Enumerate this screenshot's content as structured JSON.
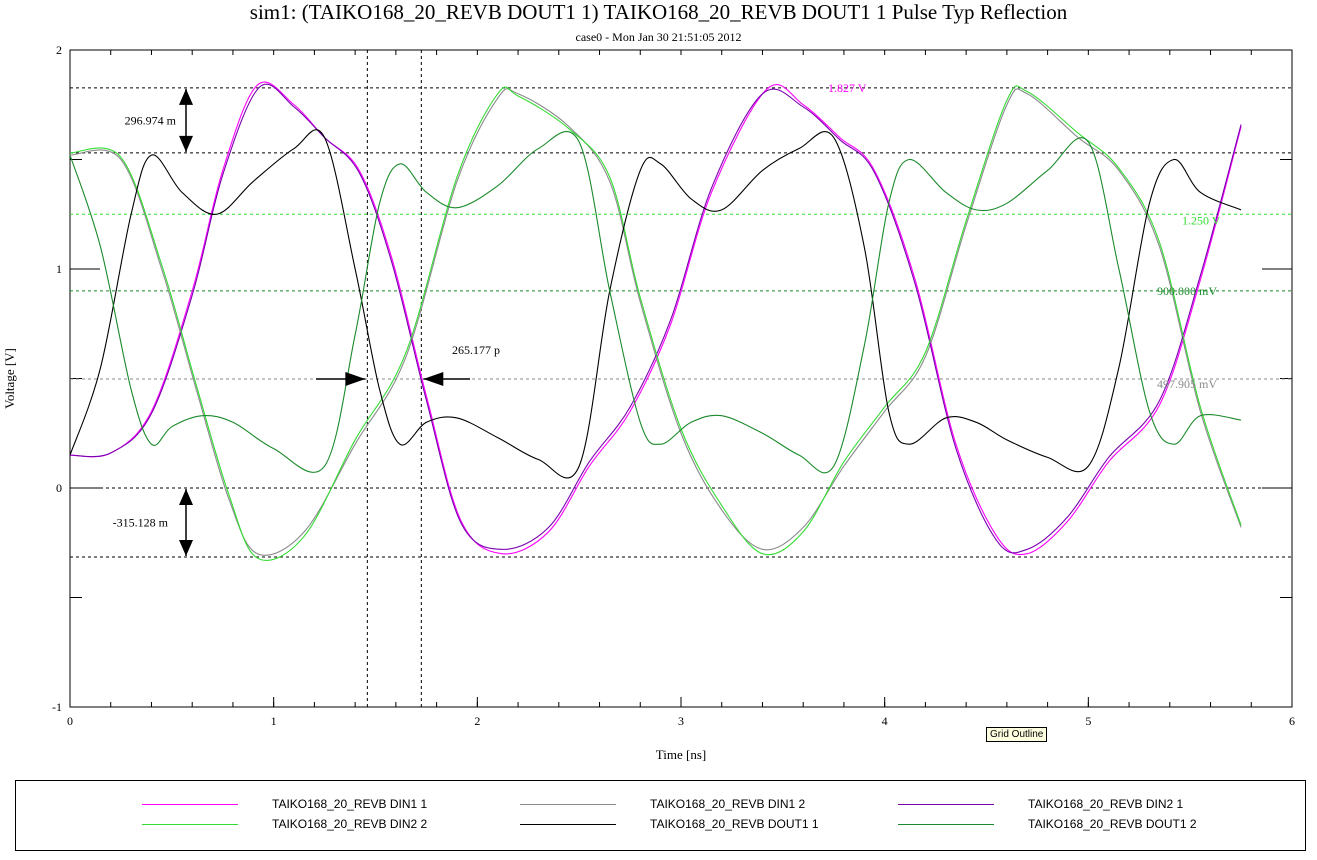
{
  "title": "sim1: (TAIKO168_20_REVB DOUT1 1) TAIKO168_20_REVB DOUT1 1 Pulse Typ Reflection",
  "subtitle": "case0 - Mon Jan 30 21:51:05 2012",
  "tooltip": "Grid Outline",
  "colors": {
    "magenta": "#ff00ff",
    "gray_trace": "#8a8a8a",
    "purple": "#7a00b0",
    "light_green": "#33dd33",
    "black": "#000000",
    "dark_green": "#1a8a2a"
  },
  "legend": [
    {
      "label": "TAIKO168_20_REVB DIN1 1",
      "color": "#ff00ff"
    },
    {
      "label": "TAIKO168_20_REVB DIN1 2",
      "color": "#8a8a8a"
    },
    {
      "label": "TAIKO168_20_REVB DIN2 1",
      "color": "#7a00b0"
    },
    {
      "label": "TAIKO168_20_REVB DIN2 2",
      "color": "#33dd33"
    },
    {
      "label": "TAIKO168_20_REVB DOUT1 1",
      "color": "#000000"
    },
    {
      "label": "TAIKO168_20_REVB DOUT1 2",
      "color": "#1a8a2a"
    }
  ],
  "chart_data": {
    "type": "line",
    "title": "sim1: (TAIKO168_20_REVB DOUT1 1) TAIKO168_20_REVB DOUT1 1 Pulse Typ Reflection",
    "subtitle": "case0 - Mon Jan 30 21:51:05 2012",
    "xlabel": "Time [ns]",
    "ylabel": "Voltage [V]",
    "xlim": [
      0,
      6
    ],
    "ylim": [
      -1,
      2
    ],
    "xticks": [
      0,
      1,
      2,
      3,
      4,
      5,
      6
    ],
    "yticks": [
      -1,
      0,
      1,
      2
    ],
    "grid": false,
    "legend_position": "bottom",
    "reference_lines": [
      {
        "y": 1.827,
        "label": "1.827 V",
        "color": "#ff00ff"
      },
      {
        "y": 1.25,
        "label": "1.250 V",
        "color": "#33dd33"
      },
      {
        "y": 0.9,
        "label": "900.000 mV",
        "color": "#1a8a2a"
      },
      {
        "y": 0.4979,
        "label": "497.905 mV",
        "color": "#8a8a8a"
      }
    ],
    "extra_hlines": [
      1.53,
      0.0,
      -0.315
    ],
    "cursor_lines_x": [
      1.46,
      1.725
    ],
    "annotations": [
      {
        "text": "296.974 m",
        "y_from": 1.53,
        "y_to": 1.827
      },
      {
        "text": "-315.128 m",
        "y_from": -0.315,
        "y_to": 0.0
      },
      {
        "text": "265.177 p",
        "x_from": 1.46,
        "x_to": 1.725,
        "y": 0.5
      }
    ],
    "series": [
      {
        "name": "TAIKO168_20_REVB DIN1 1",
        "color": "#ff00ff",
        "x": [
          0,
          0.2,
          0.4,
          0.6,
          0.75,
          0.92,
          1.1,
          1.25,
          1.42,
          1.58,
          1.75,
          1.92,
          2.12,
          2.35,
          2.55,
          2.75,
          2.95,
          3.15,
          3.42,
          3.6,
          3.78,
          3.95,
          4.15,
          4.35,
          4.55,
          4.7,
          4.9,
          5.1,
          5.35,
          5.55,
          5.75
        ],
        "y": [
          0.15,
          0.16,
          0.35,
          0.9,
          1.45,
          1.84,
          1.75,
          1.6,
          1.45,
          1.05,
          0.42,
          -0.15,
          -0.3,
          -0.2,
          0.1,
          0.35,
          0.75,
          1.35,
          1.82,
          1.75,
          1.6,
          1.45,
          0.95,
          0.2,
          -0.22,
          -0.3,
          -0.15,
          0.12,
          0.38,
          0.95,
          1.65
        ]
      },
      {
        "name": "TAIKO168_20_REVB DIN1 2",
        "color": "#8a8a8a",
        "x": [
          0,
          0.25,
          0.45,
          0.62,
          0.78,
          0.92,
          1.15,
          1.4,
          1.65,
          1.9,
          2.1,
          2.2,
          2.45,
          2.65,
          2.8,
          3.0,
          3.2,
          3.4,
          3.6,
          3.8,
          4.0,
          4.2,
          4.4,
          4.6,
          4.7,
          4.95,
          5.15,
          5.35,
          5.55,
          5.75
        ],
        "y": [
          1.52,
          1.5,
          1.0,
          0.45,
          -0.05,
          -0.3,
          -0.2,
          0.2,
          0.6,
          1.4,
          1.78,
          1.8,
          1.65,
          1.4,
          0.85,
          0.25,
          -0.1,
          -0.28,
          -0.18,
          0.1,
          0.35,
          0.6,
          1.2,
          1.75,
          1.8,
          1.6,
          1.45,
          1.1,
          0.35,
          -0.18
        ]
      },
      {
        "name": "TAIKO168_20_REVB DIN2 1",
        "color": "#7a00b0",
        "x": [
          0,
          0.2,
          0.4,
          0.6,
          0.75,
          0.93,
          1.1,
          1.25,
          1.42,
          1.58,
          1.75,
          1.92,
          2.12,
          2.35,
          2.55,
          2.75,
          2.95,
          3.15,
          3.4,
          3.6,
          3.78,
          3.95,
          4.15,
          4.35,
          4.55,
          4.7,
          4.9,
          5.1,
          5.35,
          5.55,
          5.75
        ],
        "y": [
          0.15,
          0.16,
          0.34,
          0.88,
          1.43,
          1.83,
          1.74,
          1.6,
          1.44,
          1.03,
          0.4,
          -0.16,
          -0.28,
          -0.18,
          0.12,
          0.37,
          0.77,
          1.37,
          1.8,
          1.74,
          1.59,
          1.44,
          0.93,
          0.18,
          -0.24,
          -0.28,
          -0.13,
          0.14,
          0.4,
          0.97,
          1.66
        ]
      },
      {
        "name": "TAIKO168_20_REVB DIN2 2",
        "color": "#33dd33",
        "x": [
          0,
          0.25,
          0.45,
          0.62,
          0.78,
          0.92,
          1.15,
          1.4,
          1.65,
          1.9,
          2.1,
          2.2,
          2.45,
          2.65,
          2.8,
          3.0,
          3.2,
          3.4,
          3.6,
          3.8,
          4.0,
          4.2,
          4.4,
          4.6,
          4.7,
          4.95,
          5.15,
          5.35,
          5.55,
          5.75
        ],
        "y": [
          1.53,
          1.51,
          1.02,
          0.47,
          -0.03,
          -0.32,
          -0.22,
          0.22,
          0.62,
          1.42,
          1.8,
          1.79,
          1.64,
          1.42,
          0.87,
          0.27,
          -0.08,
          -0.3,
          -0.2,
          0.12,
          0.37,
          0.62,
          1.22,
          1.77,
          1.81,
          1.62,
          1.46,
          1.12,
          0.37,
          -0.17
        ]
      },
      {
        "name": "TAIKO168_20_REVB DOUT1 1",
        "color": "#000000",
        "x": [
          0,
          0.15,
          0.3,
          0.4,
          0.55,
          0.72,
          0.9,
          1.1,
          1.25,
          1.4,
          1.52,
          1.62,
          1.75,
          1.9,
          2.1,
          2.3,
          2.5,
          2.65,
          2.8,
          2.9,
          3.05,
          3.2,
          3.4,
          3.58,
          3.75,
          3.9,
          4.02,
          4.12,
          4.3,
          4.45,
          4.6,
          4.8,
          5.0,
          5.15,
          5.3,
          5.42,
          5.55,
          5.75
        ],
        "y": [
          0.15,
          0.55,
          1.25,
          1.52,
          1.35,
          1.25,
          1.4,
          1.55,
          1.6,
          1.0,
          0.45,
          0.2,
          0.3,
          0.32,
          0.23,
          0.13,
          0.1,
          0.9,
          1.45,
          1.48,
          1.32,
          1.27,
          1.45,
          1.55,
          1.6,
          1.1,
          0.35,
          0.2,
          0.32,
          0.3,
          0.22,
          0.14,
          0.1,
          0.55,
          1.3,
          1.5,
          1.35,
          1.27
        ]
      },
      {
        "name": "TAIKO168_20_REVB DOUT1 2",
        "color": "#1a8a2a",
        "x": [
          0,
          0.15,
          0.3,
          0.4,
          0.5,
          0.65,
          0.8,
          1.0,
          1.25,
          1.4,
          1.52,
          1.62,
          1.75,
          1.9,
          2.1,
          2.3,
          2.5,
          2.65,
          2.8,
          2.9,
          3.05,
          3.2,
          3.4,
          3.58,
          3.75,
          3.9,
          4.02,
          4.12,
          4.3,
          4.45,
          4.6,
          4.8,
          5.0,
          5.15,
          5.3,
          5.42,
          5.55,
          5.75
        ],
        "y": [
          1.52,
          1.1,
          0.45,
          0.2,
          0.28,
          0.33,
          0.3,
          0.18,
          0.1,
          0.7,
          1.3,
          1.48,
          1.35,
          1.28,
          1.38,
          1.55,
          1.58,
          0.9,
          0.3,
          0.2,
          0.3,
          0.33,
          0.25,
          0.15,
          0.1,
          0.65,
          1.3,
          1.5,
          1.35,
          1.27,
          1.3,
          1.45,
          1.58,
          1.0,
          0.35,
          0.2,
          0.33,
          0.31
        ]
      }
    ]
  }
}
